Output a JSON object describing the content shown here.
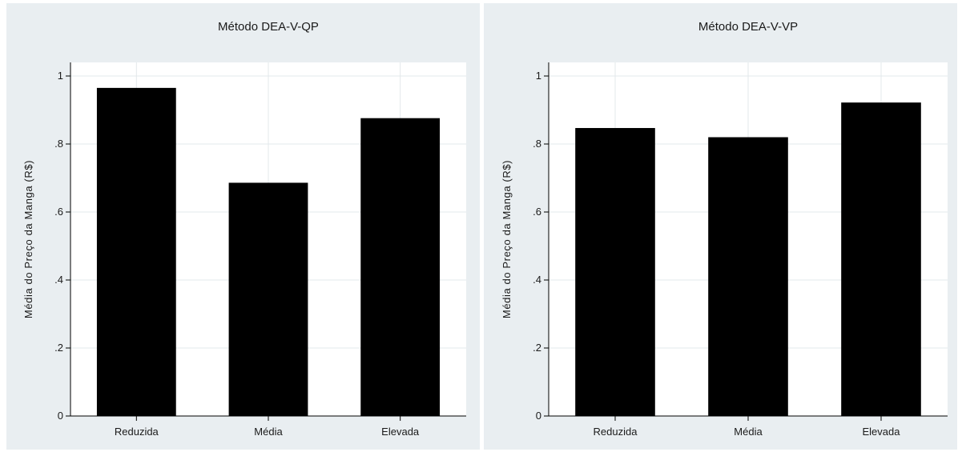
{
  "chart_data": [
    {
      "type": "bar",
      "title": "Método DEA-V-QP",
      "xlabel": "",
      "ylabel": "Média do Preço da Manga (R$)",
      "categories": [
        "Reduzida",
        "Média",
        "Elevada"
      ],
      "values": [
        0.965,
        0.686,
        0.876
      ],
      "ylim": [
        0,
        1.04
      ],
      "yticks": [
        0,
        0.2,
        0.4,
        0.6,
        0.8,
        1
      ],
      "ytick_labels": [
        "0",
        ".2",
        ".4",
        ".6",
        ".8",
        "1"
      ],
      "grid": true,
      "bar_color": "#000000",
      "background_color": "#e9eef1"
    },
    {
      "type": "bar",
      "title": "Método DEA-V-VP",
      "xlabel": "",
      "ylabel": "Média do Preço da Manga (R$)",
      "categories": [
        "Reduzida",
        "Média",
        "Elevada"
      ],
      "values": [
        0.847,
        0.82,
        0.922
      ],
      "ylim": [
        0,
        1.04
      ],
      "yticks": [
        0,
        0.2,
        0.4,
        0.6,
        0.8,
        1
      ],
      "ytick_labels": [
        "0",
        ".2",
        ".4",
        ".6",
        ".8",
        "1"
      ],
      "grid": true,
      "bar_color": "#000000",
      "background_color": "#e9eef1"
    }
  ]
}
